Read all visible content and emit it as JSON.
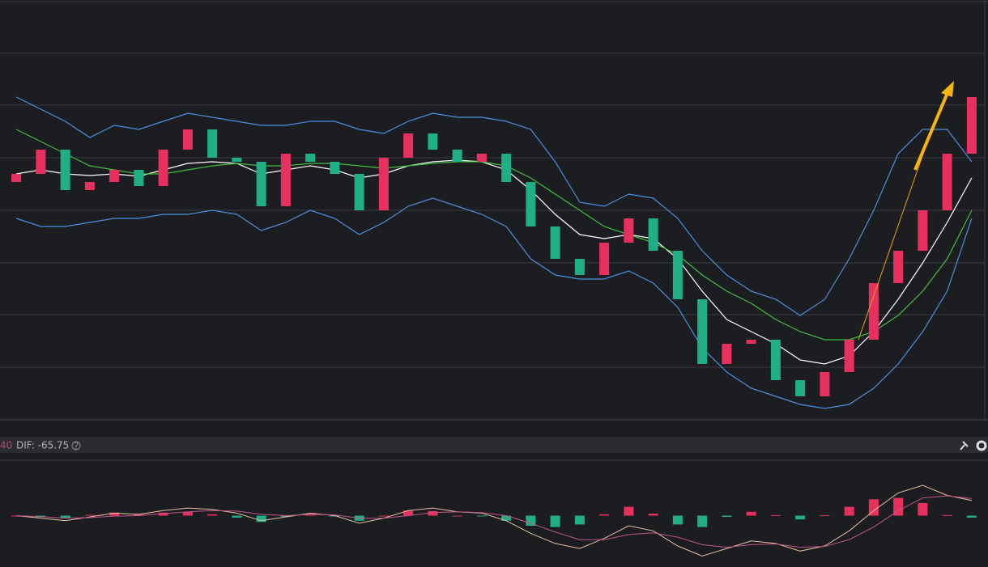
{
  "chart_data": {
    "type": "candlestick",
    "open": [
      295,
      305,
      335,
      285,
      295,
      310,
      290,
      335,
      360,
      325,
      320,
      265,
      330,
      320,
      305,
      260,
      325,
      355,
      335,
      320,
      330,
      295,
      240,
      200,
      180,
      220,
      250,
      210,
      150,
      70,
      95,
      100,
      50,
      30,
      60,
      100,
      170,
      210,
      260,
      330
    ],
    "close": [
      305,
      335,
      285,
      295,
      310,
      290,
      335,
      360,
      325,
      320,
      265,
      330,
      320,
      305,
      260,
      325,
      355,
      335,
      320,
      330,
      295,
      240,
      200,
      180,
      220,
      250,
      210,
      150,
      70,
      95,
      100,
      50,
      30,
      60,
      100,
      170,
      210,
      260,
      330,
      400
    ],
    "up_color": "#e8305f",
    "down_color": "#1fae86",
    "series": [
      {
        "color": "#4a8fe0",
        "values": [
          400,
          385,
          370,
          350,
          365,
          360,
          370,
          380,
          375,
          370,
          365,
          365,
          370,
          370,
          360,
          355,
          370,
          380,
          375,
          375,
          370,
          360,
          320,
          270,
          265,
          280,
          275,
          250,
          210,
          180,
          160,
          150,
          130,
          150,
          200,
          260,
          330,
          360,
          360,
          320
        ]
      },
      {
        "color": "#ffffff",
        "values": [
          305,
          310,
          305,
          303,
          305,
          302,
          310,
          318,
          320,
          318,
          305,
          310,
          315,
          310,
          300,
          305,
          315,
          320,
          322,
          320,
          310,
          285,
          255,
          230,
          225,
          230,
          225,
          200,
          160,
          125,
          110,
          95,
          75,
          70,
          80,
          110,
          150,
          195,
          245,
          300
        ]
      },
      {
        "color": "#4a8fe0",
        "values": [
          250,
          240,
          240,
          245,
          250,
          250,
          255,
          255,
          260,
          255,
          235,
          245,
          260,
          250,
          230,
          245,
          265,
          275,
          265,
          255,
          240,
          200,
          180,
          175,
          175,
          185,
          170,
          140,
          90,
          60,
          40,
          30,
          20,
          15,
          20,
          40,
          70,
          110,
          160,
          250
        ]
      },
      {
        "color": "#3fbf3f",
        "values": [
          360,
          345,
          330,
          315,
          310,
          305,
          305,
          310,
          315,
          318,
          315,
          315,
          318,
          318,
          315,
          312,
          315,
          318,
          320,
          320,
          315,
          300,
          280,
          260,
          240,
          230,
          220,
          205,
          180,
          160,
          145,
          125,
          110,
          100,
          100,
          110,
          130,
          160,
          200,
          260
        ]
      }
    ],
    "ylim": [
      0,
      520
    ],
    "gridlines": [
      454,
      390,
      325,
      260,
      195,
      131,
      66
    ],
    "indicator": {
      "partial_label": "40",
      "label": "DIF: -65.75",
      "ylim": [
        -200,
        200
      ],
      "hist": [
        0,
        -6,
        -10,
        3,
        12,
        5,
        12,
        15,
        5,
        -8,
        -25,
        -5,
        5,
        -3,
        -20,
        0,
        20,
        18,
        0,
        -2,
        -20,
        -40,
        -45,
        -35,
        5,
        35,
        8,
        -35,
        -45,
        -5,
        15,
        2,
        -15,
        2,
        35,
        65,
        70,
        50,
        2,
        -8
      ],
      "series": [
        {
          "color": "#e8c0a0",
          "values": [
            0,
            -10,
            -20,
            -5,
            10,
            5,
            20,
            30,
            25,
            10,
            -20,
            -5,
            10,
            0,
            -30,
            -10,
            20,
            30,
            15,
            10,
            -20,
            -70,
            -110,
            -130,
            -90,
            -40,
            -60,
            -120,
            -160,
            -130,
            -100,
            -110,
            -140,
            -120,
            -60,
            20,
            90,
            120,
            80,
            60
          ]
        },
        {
          "color": "#c0558a",
          "values": [
            0,
            -4,
            -10,
            -8,
            -2,
            0,
            8,
            15,
            20,
            18,
            5,
            0,
            5,
            3,
            -10,
            -10,
            0,
            12,
            15,
            12,
            0,
            -30,
            -65,
            -95,
            -95,
            -75,
            -68,
            -85,
            -115,
            -125,
            -115,
            -112,
            -125,
            -122,
            -95,
            -45,
            20,
            70,
            78,
            68
          ]
        }
      ]
    }
  }
}
